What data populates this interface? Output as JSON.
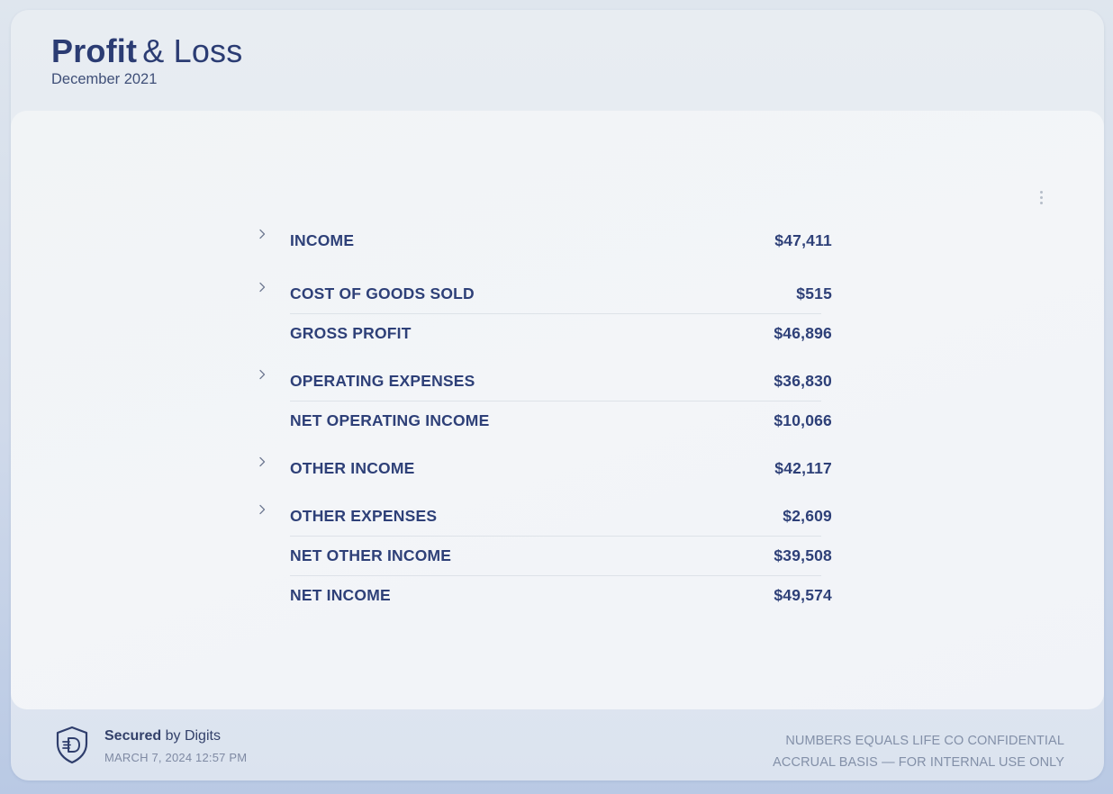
{
  "header": {
    "title_bold": "Profit",
    "title_rest": "& Loss",
    "period": "December 2021"
  },
  "report": {
    "rows": [
      {
        "label": "INCOME",
        "amount": "$47,411",
        "expandable": true
      },
      {
        "label": "COST OF GOODS SOLD",
        "amount": "$515",
        "expandable": true
      },
      {
        "label": "GROSS PROFIT",
        "amount": "$46,896",
        "expandable": false
      },
      {
        "label": "OPERATING EXPENSES",
        "amount": "$36,830",
        "expandable": true
      },
      {
        "label": "NET OPERATING INCOME",
        "amount": "$10,066",
        "expandable": false
      },
      {
        "label": "OTHER INCOME",
        "amount": "$42,117",
        "expandable": true
      },
      {
        "label": "OTHER EXPENSES",
        "amount": "$2,609",
        "expandable": true
      },
      {
        "label": "NET OTHER INCOME",
        "amount": "$39,508",
        "expandable": false
      },
      {
        "label": "NET INCOME",
        "amount": "$49,574",
        "expandable": false
      }
    ]
  },
  "footer": {
    "secured_bold": "Secured",
    "secured_rest": "by Digits",
    "timestamp": "MARCH 7, 2024 12:57 PM",
    "confidential": "NUMBERS EQUALS LIFE CO CONFIDENTIAL",
    "basis": "ACCRUAL BASIS — FOR INTERNAL USE ONLY"
  },
  "icons": {
    "more_menu": "kebab-vertical-icon",
    "expand": "chevron-right-icon",
    "brand": "digits-shield-icon"
  },
  "colors": {
    "text_primary": "#2e4078",
    "text_muted": "#8390a8",
    "divider": "#dde2e8"
  }
}
